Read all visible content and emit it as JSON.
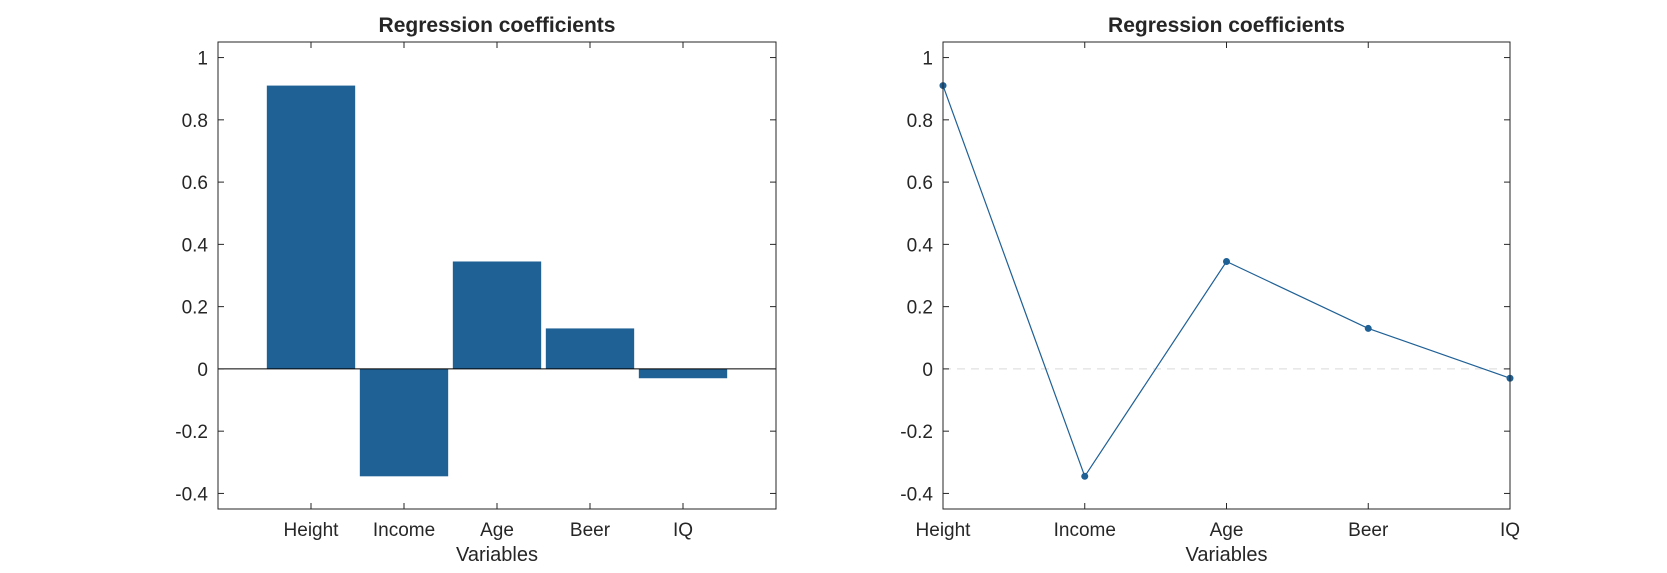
{
  "chart_data": [
    {
      "type": "bar",
      "title": "Regression coefficients",
      "xlabel": "Variables",
      "ylabel": "",
      "categories": [
        "Height",
        "Income",
        "Age",
        "Beer",
        "IQ"
      ],
      "values": [
        0.91,
        -0.345,
        0.345,
        0.13,
        -0.03
      ],
      "xlim": [
        0,
        6
      ],
      "ylim": [
        -0.45,
        1.05
      ],
      "yticks": [
        1,
        0.8,
        0.6,
        0.4,
        0.2,
        0,
        -0.2,
        -0.4
      ],
      "ytick_labels": [
        "1",
        "0.8",
        "0.6",
        "0.4",
        "0.2",
        "0",
        "-0.2",
        "-0.4"
      ],
      "grid": false,
      "bar_color": "#1f6095",
      "baseline_color": "#000000"
    },
    {
      "type": "line",
      "title": "Regression coefficients",
      "xlabel": "Variables",
      "ylabel": "",
      "categories": [
        "Height",
        "Income",
        "Age",
        "Beer",
        "IQ"
      ],
      "values": [
        0.91,
        -0.345,
        0.345,
        0.13,
        -0.03
      ],
      "xlim": [
        1,
        5
      ],
      "ylim": [
        -0.45,
        1.05
      ],
      "yticks": [
        1,
        0.8,
        0.6,
        0.4,
        0.2,
        0,
        -0.2,
        -0.4
      ],
      "ytick_labels": [
        "1",
        "0.8",
        "0.6",
        "0.4",
        "0.2",
        "0",
        "-0.2",
        "-0.4"
      ],
      "grid": false,
      "markers": true,
      "zero_line": "dashed",
      "line_color": "#1f6095",
      "zero_line_color": "#d9d9d9"
    }
  ]
}
